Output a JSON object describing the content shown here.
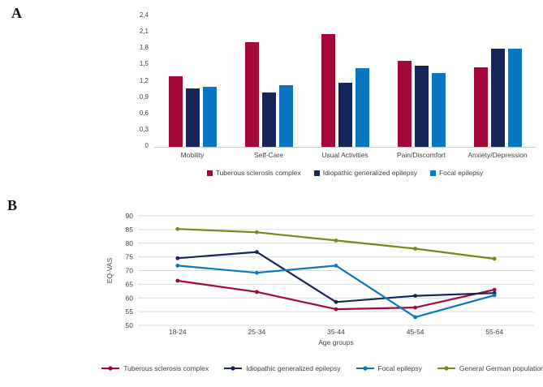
{
  "panels": {
    "a": "A",
    "b": "B"
  },
  "colors": {
    "tsc": "#A30839",
    "ige": "#17265A",
    "focal": "#0B76C0",
    "german": "#76871E",
    "grid": "#D9D9D9",
    "axis": "#C9C9C9",
    "text": "#3F3F3F"
  },
  "chart_data": [
    {
      "id": "eq5d-dimensions",
      "type": "bar",
      "categories": [
        "Mobility",
        "Self-Care",
        "Usual Activities",
        "Pain/Discomfort",
        "Anxiety/Depression"
      ],
      "series": [
        {
          "name": "Tuberous sclerosis complex",
          "color_key": "tsc",
          "values": [
            1.3,
            1.93,
            2.08,
            1.58,
            1.46
          ]
        },
        {
          "name": "Idiopathic generalized epilepsy",
          "color_key": "ige",
          "values": [
            1.08,
            1.0,
            1.18,
            1.49,
            1.81
          ]
        },
        {
          "name": "Focal epilepsy",
          "color_key": "focal",
          "values": [
            1.11,
            1.14,
            1.45,
            1.36,
            1.81
          ]
        }
      ],
      "xlabel": "",
      "ylabel": "",
      "ylim": [
        0,
        2.4
      ],
      "ytick_step": 0.3,
      "ytick_labels": [
        "0",
        "0,3",
        "0,6",
        "0,9",
        "1,2",
        "1,5",
        "1,8",
        "2,1",
        "2,4"
      ],
      "grid": false,
      "legend_position": "bottom"
    },
    {
      "id": "eq-vas-by-age",
      "type": "line",
      "categories": [
        "18-24",
        "25-34",
        "35-44",
        "45-54",
        "55-64"
      ],
      "series": [
        {
          "name": "Tuberous sclerosis complex",
          "color_key": "tsc",
          "values": [
            66.3,
            62.2,
            55.9,
            56.5,
            63.0
          ]
        },
        {
          "name": "Idiopathic generalized epilepsy",
          "color_key": "ige",
          "values": [
            74.5,
            76.8,
            58.5,
            60.8,
            61.8
          ]
        },
        {
          "name": "Focal epilepsy",
          "color_key": "focal",
          "values": [
            71.8,
            69.2,
            71.8,
            53.0,
            61.0
          ]
        },
        {
          "name": "General German population",
          "color_key": "german",
          "values": [
            85.2,
            84.0,
            81.0,
            78.0,
            74.3
          ]
        }
      ],
      "xlabel": "Age groups",
      "ylabel": "EQ-VAS",
      "ylim": [
        50,
        90
      ],
      "ytick_step": 5,
      "ytick_labels": [
        "50",
        "55",
        "60",
        "65",
        "70",
        "75",
        "80",
        "85",
        "90"
      ],
      "grid": true,
      "legend_position": "bottom"
    }
  ]
}
